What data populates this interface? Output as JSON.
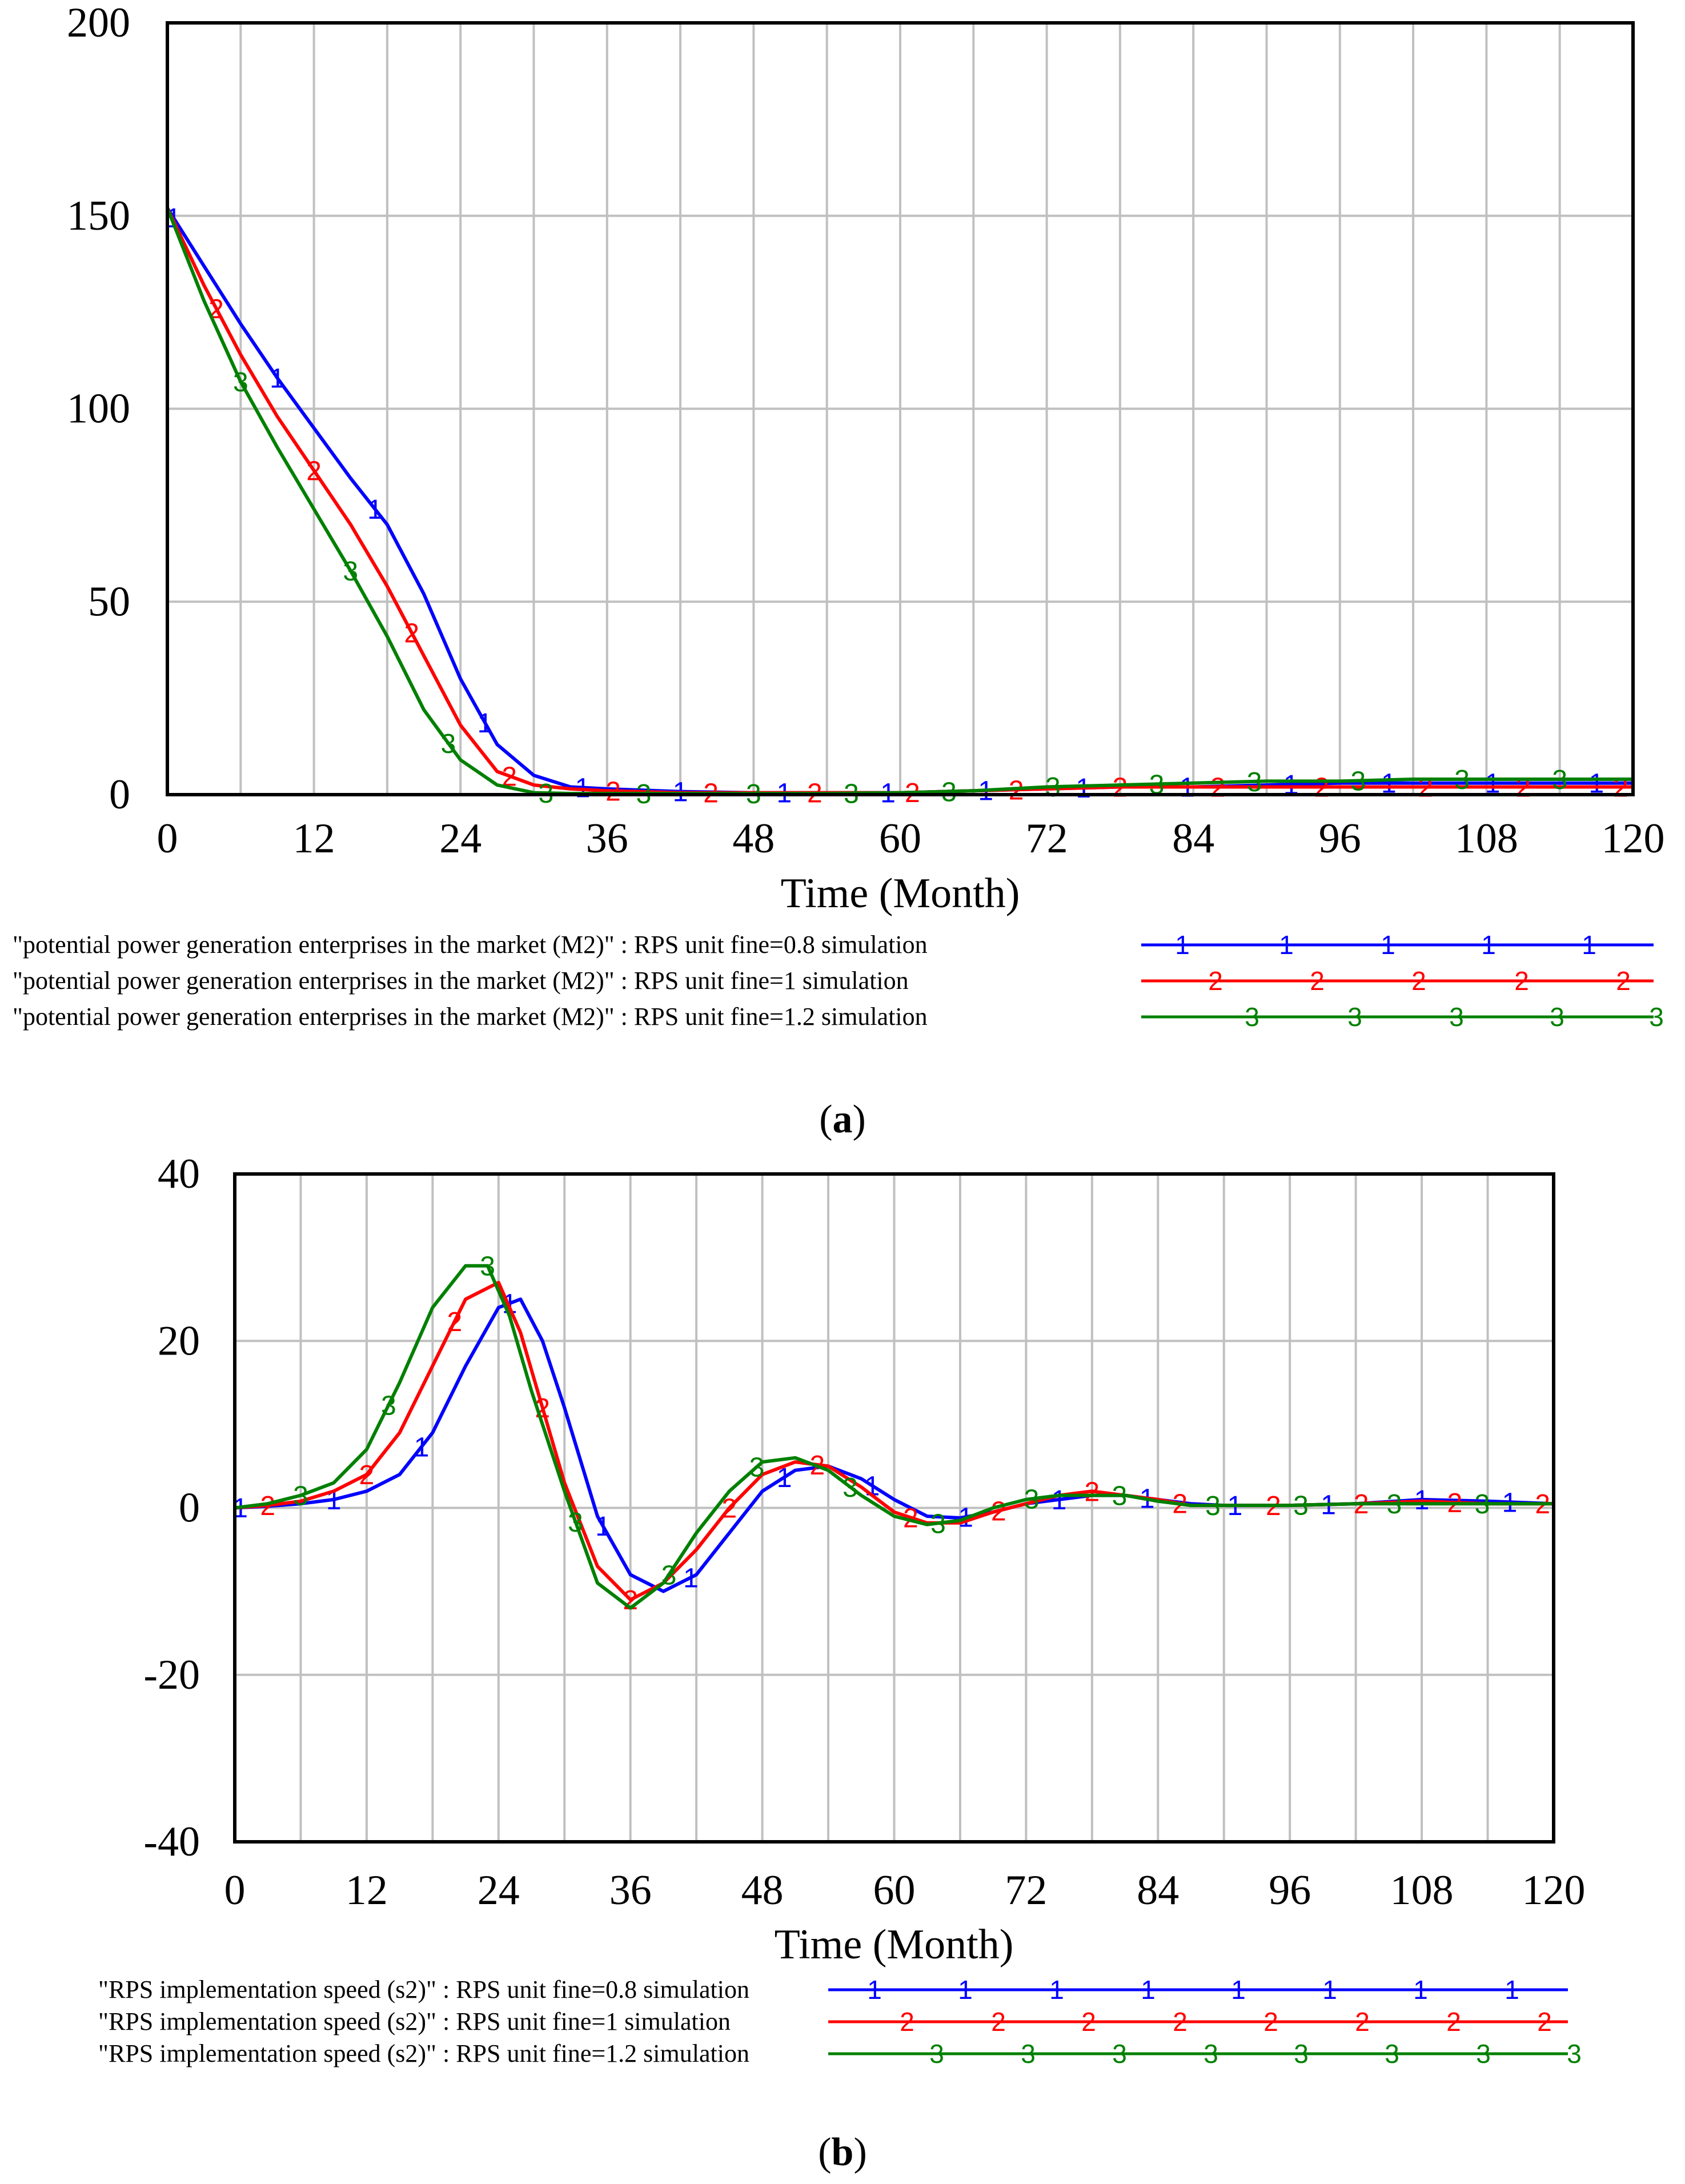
{
  "colors": {
    "s1": "#0000ff",
    "s2": "#ff0000",
    "s3": "#008000",
    "grid": "#c0c0c0",
    "frame": "#000000"
  },
  "chart_data": [
    {
      "type": "line",
      "panel": "a",
      "caption": "a",
      "xlabel": "Time (Month)",
      "ylabel": "",
      "xlim": [
        0,
        120
      ],
      "ylim": [
        0,
        200
      ],
      "xticks": [
        0,
        12,
        24,
        36,
        48,
        60,
        72,
        84,
        96,
        108,
        120
      ],
      "yticks": [
        0,
        50,
        100,
        150,
        200
      ],
      "ytick_labels": [
        "0",
        "50",
        "100",
        "150",
        "200"
      ],
      "x_gridlines": 20,
      "y_gridlines": 4,
      "grid": true,
      "series": [
        {
          "name": "\"potential power generation enterprises in the market (M2)\" : RPS unit fine=0.8 simulation",
          "marker": "1",
          "color_key": "s1",
          "x": [
            0,
            3,
            6,
            9,
            12,
            15,
            18,
            21,
            24,
            27,
            30,
            33,
            36,
            42,
            48,
            54,
            60,
            66,
            72,
            78,
            84,
            90,
            96,
            102,
            108,
            114,
            120
          ],
          "y": [
            152,
            137,
            122,
            108,
            95,
            82,
            70,
            52,
            30,
            13,
            5,
            2,
            1.5,
            0.8,
            0.5,
            0.5,
            0.5,
            1,
            1.5,
            2,
            2,
            2.5,
            3,
            3,
            3,
            3,
            3
          ],
          "marker_x": [
            0.5,
            9,
            17,
            26,
            34,
            42,
            50.5,
            59,
            67,
            75,
            83.5,
            92,
            100,
            108.5,
            117
          ]
        },
        {
          "name": "\"potential power generation enterprises in the market (M2)\" : RPS unit fine=1 simulation",
          "marker": "2",
          "color_key": "s2",
          "x": [
            0,
            3,
            6,
            9,
            12,
            15,
            18,
            21,
            24,
            27,
            30,
            33,
            36,
            42,
            48,
            54,
            60,
            66,
            72,
            78,
            84,
            90,
            96,
            102,
            108,
            114,
            120
          ],
          "y": [
            152,
            132,
            114,
            98,
            84,
            70,
            54,
            36,
            18,
            6,
            2.5,
            1.5,
            1,
            0.5,
            0.5,
            0.5,
            0.5,
            1,
            1.5,
            2,
            2,
            2,
            2,
            2,
            2,
            2,
            2
          ],
          "marker_x": [
            4,
            12,
            20,
            28,
            36.5,
            44.5,
            53,
            61,
            69.5,
            78,
            86,
            94.5,
            103,
            111,
            119
          ]
        },
        {
          "name": "\"potential power generation enterprises in the market (M2)\" : RPS unit fine=1.2 simulation",
          "marker": "3",
          "color_key": "s3",
          "x": [
            0,
            3,
            6,
            9,
            12,
            15,
            18,
            21,
            24,
            27,
            30,
            33,
            36,
            42,
            48,
            54,
            60,
            66,
            72,
            78,
            84,
            90,
            96,
            102,
            108,
            114,
            120
          ],
          "y": [
            152,
            128,
            107,
            90,
            74,
            58,
            41,
            22,
            9,
            2.5,
            0.5,
            0.3,
            0.3,
            0.3,
            0.3,
            0.3,
            0.5,
            1,
            2,
            2.5,
            3,
            3.5,
            3.5,
            4,
            4,
            4,
            4
          ],
          "marker_x": [
            6,
            15,
            23,
            31,
            39,
            48,
            56,
            64,
            72.5,
            81,
            89,
            97.5,
            106,
            114
          ]
        }
      ]
    },
    {
      "type": "line",
      "panel": "b",
      "caption": "b",
      "xlabel": "Time (Month)",
      "ylabel": "",
      "xlim": [
        0,
        120
      ],
      "ylim": [
        -40,
        40
      ],
      "xticks": [
        0,
        12,
        24,
        36,
        48,
        60,
        72,
        84,
        96,
        108,
        120
      ],
      "yticks": [
        -40,
        -20,
        0,
        20,
        40
      ],
      "ytick_labels": [
        "-40",
        "-20",
        "0",
        "20",
        "40"
      ],
      "x_gridlines": 20,
      "y_gridlines": 4,
      "grid": true,
      "series": [
        {
          "name": "\"RPS implementation speed (s2)\" : RPS unit fine=0.8 simulation",
          "marker": "1",
          "color_key": "s1",
          "x": [
            0,
            3,
            6,
            9,
            12,
            15,
            18,
            21,
            24,
            26,
            28,
            30,
            33,
            36,
            39,
            42,
            45,
            48,
            51,
            54,
            57,
            60,
            63,
            66,
            69,
            72,
            75,
            78,
            81,
            84,
            87,
            90,
            96,
            102,
            108,
            114,
            120
          ],
          "y": [
            0,
            0.2,
            0.5,
            1,
            2,
            4,
            9,
            17,
            24,
            25,
            20,
            12,
            -1,
            -8,
            -10,
            -8,
            -3,
            2,
            4.5,
            5,
            3.5,
            1,
            -1,
            -1.2,
            -0.5,
            0.5,
            1,
            1.5,
            1.5,
            1,
            0.5,
            0.3,
            0.3,
            0.5,
            1,
            0.8,
            0.5
          ],
          "marker_x": [
            0.5,
            9,
            17,
            25,
            33.5,
            41.5,
            50,
            58,
            66.5,
            75,
            83,
            91,
            99.5,
            108,
            116
          ]
        },
        {
          "name": "\"RPS implementation speed (s2)\" : RPS unit fine=1 simulation",
          "marker": "2",
          "color_key": "s2",
          "x": [
            0,
            3,
            6,
            9,
            12,
            15,
            18,
            21,
            24,
            26,
            28,
            30,
            33,
            36,
            39,
            42,
            45,
            48,
            51,
            54,
            57,
            60,
            63,
            66,
            69,
            72,
            75,
            78,
            81,
            84,
            87,
            90,
            96,
            102,
            108,
            114,
            120
          ],
          "y": [
            0,
            0.3,
            0.8,
            2,
            4,
            9,
            17,
            25,
            27,
            21,
            12,
            3,
            -7,
            -11,
            -9,
            -5,
            0,
            4,
            5.5,
            5,
            2.5,
            -0.5,
            -1.8,
            -1.8,
            -0.5,
            0.5,
            1.5,
            2,
            1.5,
            1,
            0.3,
            0.3,
            0.3,
            0.5,
            0.8,
            0.5,
            0.5
          ],
          "marker_x": [
            3,
            12,
            20,
            28,
            36,
            45,
            53,
            61.5,
            69.5,
            78,
            86,
            94.5,
            102.5,
            111,
            119
          ]
        },
        {
          "name": "\"RPS implementation speed (s2)\" : RPS unit fine=1.2 simulation",
          "marker": "3",
          "color_key": "s3",
          "x": [
            0,
            3,
            6,
            9,
            12,
            15,
            18,
            21,
            23,
            25,
            27,
            30,
            33,
            36,
            39,
            42,
            45,
            48,
            51,
            54,
            57,
            60,
            63,
            66,
            69,
            72,
            75,
            78,
            81,
            84,
            87,
            90,
            96,
            102,
            108,
            114,
            120
          ],
          "y": [
            0,
            0.5,
            1.5,
            3,
            7,
            15,
            24,
            29,
            29,
            23,
            14,
            2,
            -9,
            -12,
            -9,
            -3,
            2,
            5.5,
            6,
            4.5,
            1.5,
            -1,
            -2,
            -1.5,
            0,
            1,
            1.5,
            1.5,
            1.5,
            0.8,
            0.3,
            0.3,
            0.3,
            0.5,
            0.5,
            0.5,
            0.5
          ],
          "marker_x": [
            6,
            14,
            23,
            31,
            39.5,
            47.5,
            56,
            64,
            72.5,
            80.5,
            89,
            97,
            105.5,
            113.5
          ]
        }
      ]
    }
  ]
}
